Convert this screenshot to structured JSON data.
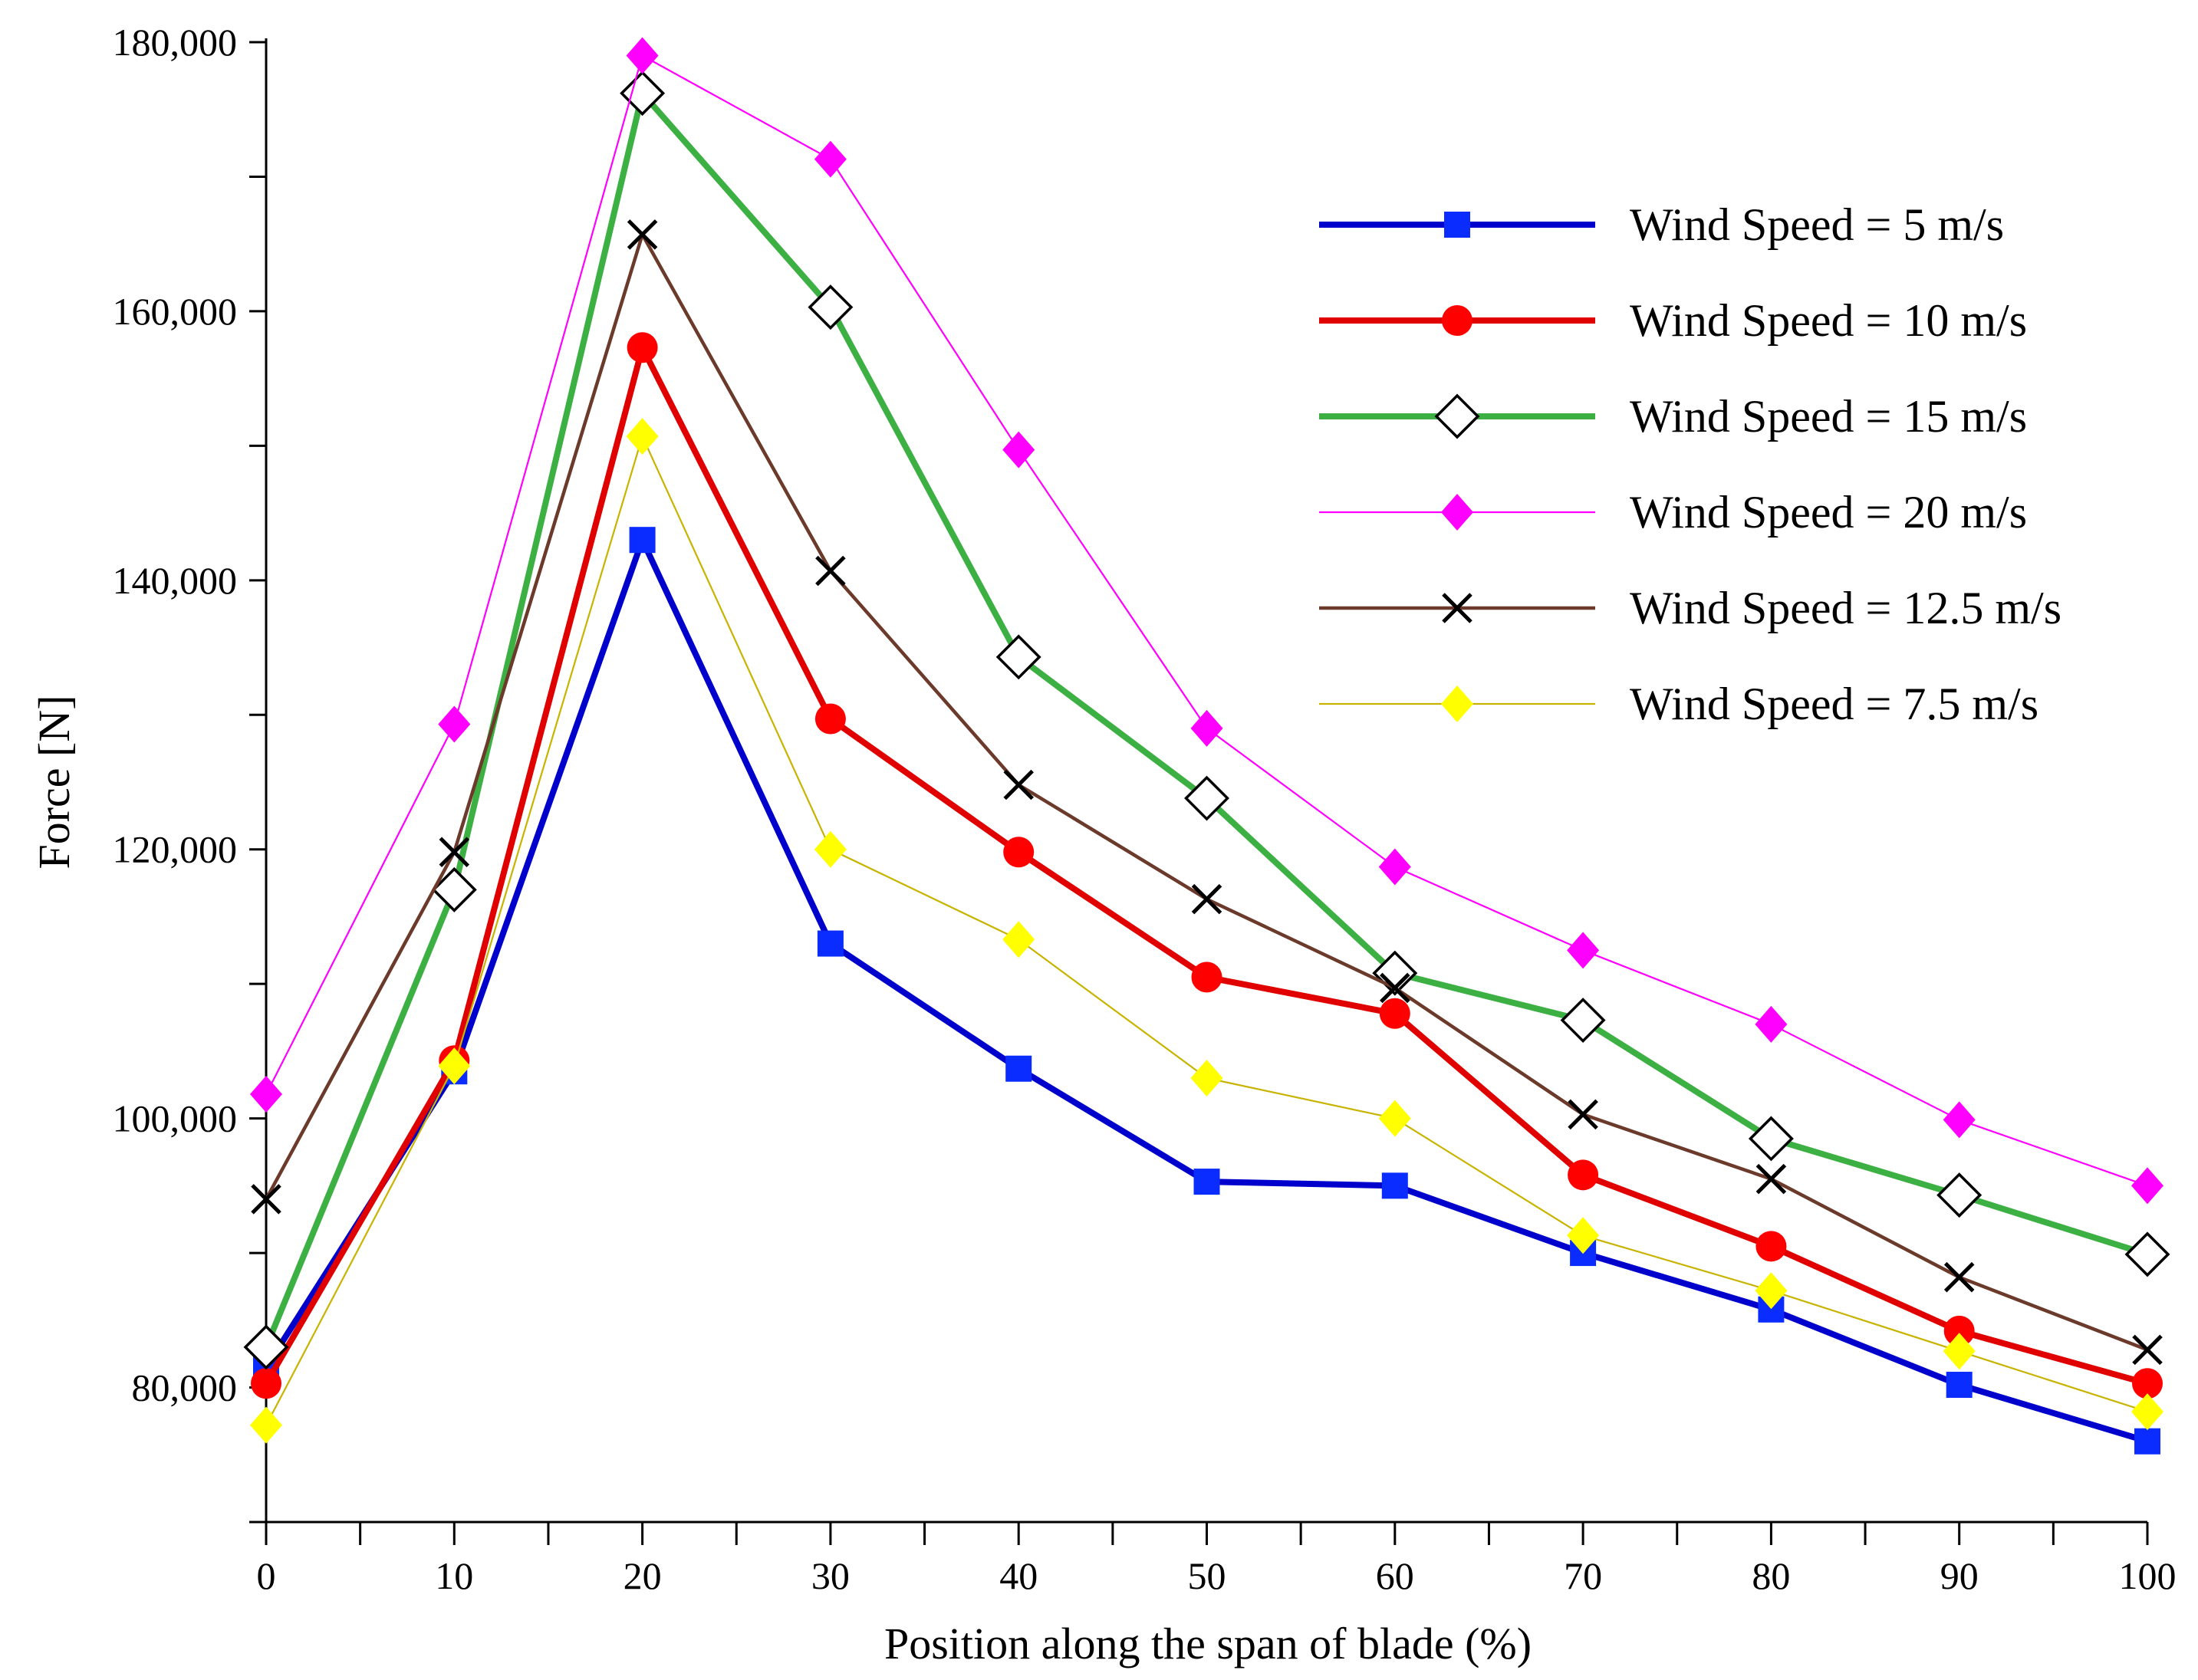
{
  "chart_data": {
    "type": "line",
    "title": "",
    "xlabel": "Position along the span of blade (%)",
    "ylabel": "Force [N]",
    "x": [
      0,
      10,
      20,
      30,
      40,
      50,
      60,
      70,
      80,
      90,
      100
    ],
    "x_tick_labels": [
      "0",
      "10",
      "20",
      "30",
      "40",
      "50",
      "60",
      "70",
      "80",
      "90",
      "100"
    ],
    "xlim": [
      0,
      100
    ],
    "ylim": [
      70000,
      180000
    ],
    "y_tick_labels": [
      "80,000",
      "100,000",
      "120,000",
      "140,000",
      "160,000",
      "180,000"
    ],
    "y_label_values": [
      80000,
      100000,
      120000,
      140000,
      160000,
      180000
    ],
    "y_minor_ticks": [
      70000,
      90000,
      110000,
      130000,
      150000,
      170000
    ],
    "grid": false,
    "legend_position": "top-right",
    "series": [
      {
        "name": "Wind Speed = 5 m/s",
        "color": "#0000cc",
        "marker": "square",
        "marker_color": "#0a2cff",
        "line_weight": "thick",
        "values": [
          81500,
          103500,
          143000,
          113000,
          103700,
          95300,
          95000,
          90000,
          85800,
          80200,
          76000
        ]
      },
      {
        "name": "Wind Speed = 10 m/s",
        "color": "#e00000",
        "marker": "circle",
        "marker_color": "#ff0000",
        "line_weight": "thick",
        "values": [
          80300,
          104300,
          157300,
          129700,
          119800,
          110500,
          107800,
          95800,
          90500,
          84200,
          80300
        ]
      },
      {
        "name": "Wind Speed = 15 m/s",
        "color": "#3cb043",
        "marker": "diamond-open",
        "marker_color": "#000000",
        "line_weight": "thick",
        "values": [
          83000,
          117000,
          176200,
          160300,
          134300,
          123800,
          110800,
          107300,
          98500,
          94300,
          89900
        ]
      },
      {
        "name": "Wind Speed = 20 m/s",
        "color": "#ff00ff",
        "marker": "diamond",
        "marker_color": "#ff00ff",
        "line_weight": "thin",
        "values": [
          101800,
          129300,
          179000,
          171300,
          149700,
          129000,
          118700,
          112500,
          107000,
          99900,
          95000
        ]
      },
      {
        "name": "Wind Speed = 12.5 m/s",
        "color": "#6b3a2a",
        "marker": "x",
        "marker_color": "#000000",
        "line_weight": "medium",
        "values": [
          94000,
          119800,
          165700,
          140700,
          124800,
          116300,
          109700,
          100300,
          95500,
          88200,
          82800
        ]
      },
      {
        "name": "Wind Speed = 7.5 m/s",
        "color": "#c8b400",
        "marker": "diamond",
        "marker_color": "#ffff00",
        "line_weight": "thin",
        "values": [
          77200,
          103900,
          150700,
          120000,
          113300,
          103000,
          100000,
          91300,
          87200,
          82700,
          78200
        ]
      }
    ]
  }
}
